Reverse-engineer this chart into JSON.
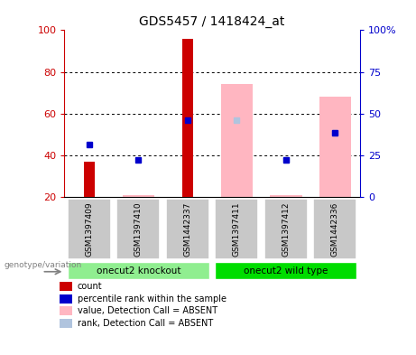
{
  "title": "GDS5457 / 1418424_at",
  "samples": [
    "GSM1397409",
    "GSM1397410",
    "GSM1442337",
    "GSM1397411",
    "GSM1397412",
    "GSM1442336"
  ],
  "bar_bottom": 20,
  "ylim": [
    20,
    100
  ],
  "right_ylim": [
    0,
    100
  ],
  "right_yticks": [
    0,
    25,
    50,
    75,
    100
  ],
  "right_yticklabels": [
    "0",
    "25",
    "50",
    "75",
    "100%"
  ],
  "left_yticks": [
    20,
    40,
    60,
    80,
    100
  ],
  "left_yticklabels": [
    "20",
    "40",
    "60",
    "80",
    "100"
  ],
  "count_values": [
    37,
    null,
    96,
    null,
    null,
    null
  ],
  "count_color": "#CC0000",
  "rank_values": [
    45,
    38,
    57,
    null,
    38,
    51
  ],
  "rank_color": "#0000CC",
  "absent_value_values": [
    null,
    21,
    null,
    74,
    21,
    68
  ],
  "absent_value_color": "#FFB6C1",
  "absent_rank_values": [
    null,
    null,
    null,
    57,
    38,
    51
  ],
  "absent_rank_color": "#B0C4DE",
  "bg_color": "#FFFFFF",
  "left_label_color": "#CC0000",
  "right_label_color": "#0000CC",
  "sample_box_color": "#C8C8C8",
  "group_label_knockout": "onecut2 knockout",
  "group_label_wildtype": "onecut2 wild type",
  "group_bg_knockout": "#90EE90",
  "group_bg_wildtype": "#00DD00",
  "genotype_label": "genotype/variation",
  "legend_items": [
    {
      "label": "count",
      "color": "#CC0000"
    },
    {
      "label": "percentile rank within the sample",
      "color": "#0000CC"
    },
    {
      "label": "value, Detection Call = ABSENT",
      "color": "#FFB6C1"
    },
    {
      "label": "rank, Detection Call = ABSENT",
      "color": "#B0C4DE"
    }
  ]
}
